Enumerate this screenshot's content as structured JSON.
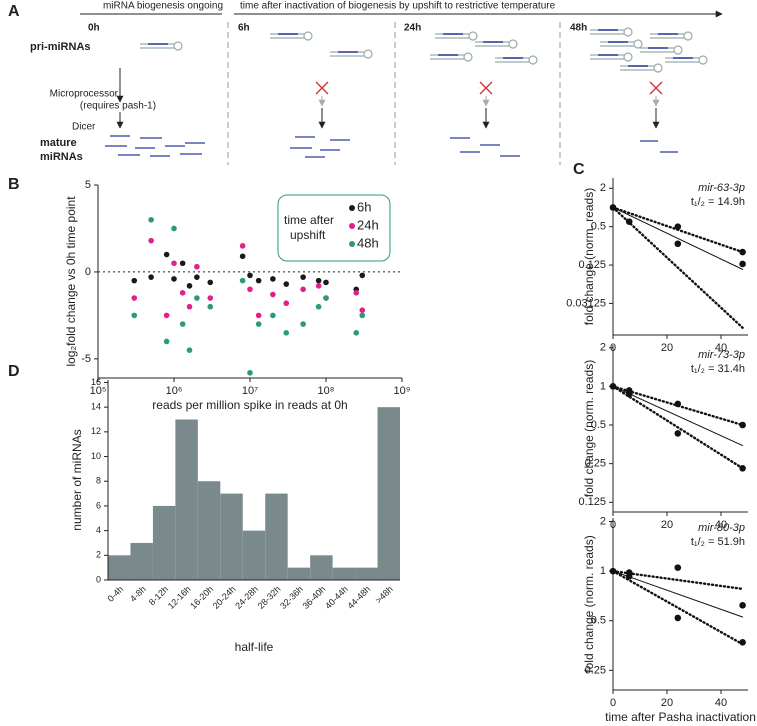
{
  "panel_a": {
    "label": "A",
    "header_left": "miRNA biogenesis ongoing",
    "header_right": "time after inactivation of biogenesis by upshift to restrictive temperature",
    "timepoints": [
      "0h",
      "6h",
      "24h",
      "48h"
    ],
    "rows": {
      "pri": "pri-miRNAs",
      "microprocessor": "Microprocessor",
      "requires": "(requires pash-1)",
      "dicer": "Dicer",
      "mature": "mature",
      "mirnas": "miRNAs"
    }
  },
  "chart_data": [
    {
      "type": "scatter",
      "panel": "B",
      "xlabel": "reads per million spike in reads at 0h",
      "ylabel": "log₂fold change vs 0h time point",
      "log_x": true,
      "xlim": [
        100000,
        1000000000
      ],
      "xticks": [
        {
          "value": 100000,
          "label": "10⁵"
        },
        {
          "value": 1000000,
          "label": "10⁶"
        },
        {
          "value": 10000000,
          "label": "10⁷"
        },
        {
          "value": 100000000,
          "label": "10⁸"
        },
        {
          "value": 1000000000,
          "label": "10⁹"
        }
      ],
      "ylim": [
        -6.1,
        5
      ],
      "yticks": [
        -5,
        0,
        5
      ],
      "hline": 0,
      "legend": {
        "title": "time after upshift",
        "position": "upper-right"
      },
      "series": [
        {
          "name": "6h",
          "color": "#1a1a1a",
          "x": [
            300000,
            500000,
            800000,
            1000000,
            1300000,
            1600000,
            2000000,
            3000000,
            8000000,
            10000000,
            13000000,
            20000000,
            30000000,
            50000000,
            80000000,
            100000000,
            250000000,
            300000000
          ],
          "values": [
            -0.5,
            -0.3,
            1.0,
            -0.4,
            0.5,
            -0.8,
            -0.3,
            -0.6,
            0.9,
            -0.2,
            -0.5,
            -0.4,
            -0.7,
            -0.3,
            -0.5,
            -0.6,
            -1.0,
            -0.2
          ]
        },
        {
          "name": "24h",
          "color": "#e0208c",
          "x": [
            300000,
            500000,
            800000,
            1000000,
            1300000,
            1600000,
            2000000,
            3000000,
            8000000,
            10000000,
            13000000,
            20000000,
            30000000,
            50000000,
            80000000,
            100000000,
            250000000,
            300000000
          ],
          "values": [
            -1.5,
            1.8,
            -2.5,
            0.5,
            -1.2,
            -2.0,
            0.3,
            -1.5,
            1.5,
            -1.0,
            -2.5,
            -1.3,
            -1.8,
            -1.0,
            -0.8,
            -1.5,
            -1.2,
            -2.2
          ]
        },
        {
          "name": "48h",
          "color": "#2a9a78",
          "x": [
            300000,
            500000,
            800000,
            1000000,
            1300000,
            1600000,
            2000000,
            3000000,
            8000000,
            10000000,
            13000000,
            20000000,
            30000000,
            50000000,
            80000000,
            100000000,
            250000000,
            300000000
          ],
          "values": [
            -2.5,
            3.0,
            -4.0,
            2.5,
            -3.0,
            -4.5,
            -1.5,
            -2.0,
            -0.5,
            -5.8,
            -3.0,
            -2.5,
            -3.5,
            -3.0,
            -2.0,
            -1.5,
            -3.5,
            -2.5
          ]
        }
      ]
    },
    {
      "type": "line",
      "panel": "C",
      "ylabel": "fold change (norm. reads)",
      "gene": "mir-63-3p",
      "half_life": "t₁/₂ = 14.9h",
      "log_y": true,
      "xlim": [
        0,
        50
      ],
      "xticks": [
        0,
        20,
        40
      ],
      "ylim": [
        0.01,
        2.9
      ],
      "yticks": [
        2,
        0.5,
        0.125,
        0.03125
      ],
      "points": {
        "x": [
          0,
          6,
          24,
          24,
          48,
          48
        ],
        "values": [
          1,
          0.6,
          0.5,
          0.27,
          0.2,
          0.13
        ]
      },
      "series": [
        {
          "style": "solid",
          "x": [
            0,
            48
          ],
          "values": [
            1,
            0.107
          ]
        },
        {
          "style": "dotted",
          "x": [
            0,
            48
          ],
          "values": [
            1,
            0.2
          ]
        },
        {
          "style": "dotted",
          "x": [
            0,
            48
          ],
          "values": [
            1,
            0.013
          ]
        }
      ]
    },
    {
      "type": "line",
      "ylabel": "fold change (norm. reads)",
      "gene": "mir-73-3p",
      "half_life": "t₁/₂ = 31.4h",
      "log_y": true,
      "xlim": [
        0,
        50
      ],
      "xticks": [
        0,
        20,
        40
      ],
      "ylim": [
        0.105,
        2.1
      ],
      "yticks": [
        2,
        1,
        0.5,
        0.25,
        0.125
      ],
      "points": {
        "x": [
          0,
          6,
          6,
          24,
          24,
          48,
          48
        ],
        "values": [
          1,
          0.93,
          0.87,
          0.73,
          0.43,
          0.5,
          0.23
        ]
      },
      "series": [
        {
          "style": "solid",
          "x": [
            0,
            48
          ],
          "values": [
            1,
            0.346
          ]
        },
        {
          "style": "dotted",
          "x": [
            0,
            48
          ],
          "values": [
            1,
            0.5
          ]
        },
        {
          "style": "dotted",
          "x": [
            0,
            48
          ],
          "values": [
            1,
            0.23
          ]
        }
      ]
    },
    {
      "type": "line",
      "ylabel": "fold change (norm. reads)",
      "xlabel": "time after Pasha inactivation",
      "gene": "mir-80-3p",
      "half_life": "t₁/₂ = 51.9h",
      "log_y": true,
      "xlim": [
        0,
        50
      ],
      "xticks": [
        0,
        20,
        40
      ],
      "ylim": [
        0.19,
        2.1
      ],
      "yticks": [
        2,
        1,
        0.5,
        0.25
      ],
      "points": {
        "x": [
          0,
          6,
          6,
          24,
          24,
          48,
          48
        ],
        "values": [
          1,
          0.98,
          0.93,
          1.05,
          0.52,
          0.62,
          0.37
        ]
      },
      "series": [
        {
          "style": "solid",
          "x": [
            0,
            48
          ],
          "values": [
            1,
            0.527
          ]
        },
        {
          "style": "dotted",
          "x": [
            0,
            48
          ],
          "values": [
            1,
            0.78
          ]
        },
        {
          "style": "dotted",
          "x": [
            0,
            48
          ],
          "values": [
            1,
            0.36
          ]
        }
      ]
    },
    {
      "type": "bar",
      "panel": "D",
      "xlabel": "half-life",
      "ylabel": "number of miRNAs",
      "color": "#7a8a8c",
      "categories": [
        "0-4h",
        "4-8h",
        "8-12h",
        "12-16h",
        "16-20h",
        "20-24h",
        "24-28h",
        "28-32h",
        "32-36h",
        "36-40h",
        "40-44h",
        "44-48h",
        ">48h"
      ],
      "values": [
        2,
        3,
        6,
        13,
        8,
        7,
        4,
        7,
        1,
        2,
        1,
        1,
        14
      ],
      "ylim": [
        0,
        16.2
      ],
      "yticks": [
        0,
        2,
        4,
        6,
        8,
        10,
        12,
        14,
        16
      ]
    }
  ]
}
